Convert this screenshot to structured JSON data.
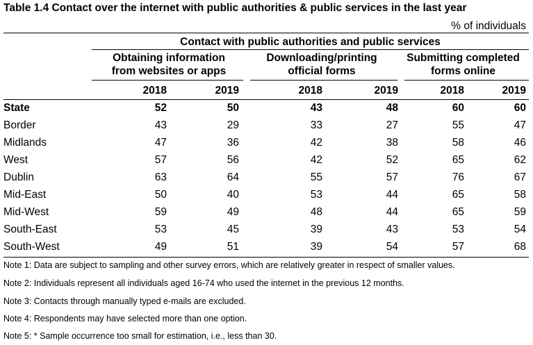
{
  "title": "Table 1.4 Contact over the internet with public authorities & public services in the last year",
  "unit": "% of individuals",
  "super_header": "Contact with public authorities and public services",
  "groups": [
    {
      "line1": "Obtaining information",
      "line2": "from websites or apps"
    },
    {
      "line1": "Downloading/printing",
      "line2": "official forms"
    },
    {
      "line1": "Submitting completed",
      "line2": "forms online"
    }
  ],
  "years": [
    "2018",
    "2019",
    "2018",
    "2019",
    "2018",
    "2019"
  ],
  "rows": [
    {
      "region": "State",
      "values": [
        "52",
        "50",
        "43",
        "48",
        "60",
        "60"
      ]
    },
    {
      "region": "Border",
      "values": [
        "43",
        "29",
        "33",
        "27",
        "55",
        "47"
      ]
    },
    {
      "region": "Midlands",
      "values": [
        "47",
        "36",
        "42",
        "38",
        "58",
        "46"
      ]
    },
    {
      "region": "West",
      "values": [
        "57",
        "56",
        "42",
        "52",
        "65",
        "62"
      ]
    },
    {
      "region": "Dublin",
      "values": [
        "63",
        "64",
        "55",
        "57",
        "76",
        "67"
      ]
    },
    {
      "region": "Mid-East",
      "values": [
        "50",
        "40",
        "53",
        "44",
        "65",
        "58"
      ]
    },
    {
      "region": "Mid-West",
      "values": [
        "59",
        "49",
        "48",
        "44",
        "65",
        "59"
      ]
    },
    {
      "region": "South-East",
      "values": [
        "53",
        "45",
        "39",
        "43",
        "53",
        "54"
      ]
    },
    {
      "region": "South-West",
      "values": [
        "49",
        "51",
        "39",
        "54",
        "57",
        "68"
      ]
    }
  ],
  "notes": [
    "Note 1: Data are subject to sampling and other survey errors, which are relatively greater in respect of smaller values.",
    "Note 2: Individuals represent all individuals aged 16-74 who used the internet in the previous 12 months.",
    "Note 3: Contacts through manually typed e-mails are excluded.",
    "Note 4: Respondents may have selected more than one option.",
    "Note 5: * Sample occurrence too small for estimation, i.e., less than 30."
  ]
}
